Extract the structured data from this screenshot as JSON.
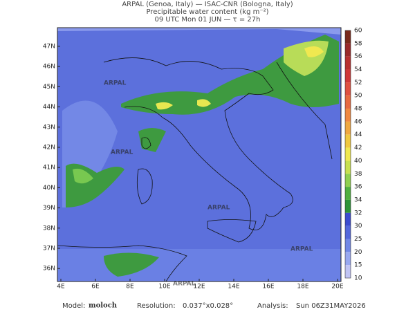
{
  "header": {
    "lines": [
      "ARPAL (Genoa, Italy)  —  ISAC-CNR (Bologna, Italy)",
      "Precipitable water content (kg m⁻²)",
      "09 UTC Mon 01 JUN  —  τ = 27h"
    ]
  },
  "map": {
    "lon_labels": [
      "4E",
      "6E",
      "8E",
      "10E",
      "12E",
      "14E",
      "16E",
      "18E",
      "20E"
    ],
    "lat_labels": [
      "47N",
      "46N",
      "45N",
      "44N",
      "43N",
      "42N",
      "41N",
      "40N",
      "39N",
      "38N",
      "37N",
      "36N"
    ],
    "watermark": "ARPAL"
  },
  "colorbar": {
    "labels": [
      "60",
      "58",
      "56",
      "54",
      "52",
      "50",
      "48",
      "46",
      "44",
      "42",
      "40",
      "38",
      "36",
      "34",
      "32",
      "30",
      "25",
      "20",
      "15",
      "10"
    ],
    "colors": [
      "#7a2a1a",
      "#9a2a2a",
      "#b83030",
      "#d03838",
      "#e05040",
      "#e86a40",
      "#f08840",
      "#f0a840",
      "#f0c840",
      "#f0e850",
      "#c8e050",
      "#90d050",
      "#50b040",
      "#2e9438",
      "#3c4cd0",
      "#5468dc",
      "#7288e6",
      "#98a8f0",
      "#c0c4f4"
    ]
  },
  "footer": {
    "model_label": "Model:",
    "model": "moloch",
    "resolution_label": "Resolution:",
    "resolution": "0.037°x0.028°",
    "analysis_label": "Analysis:",
    "analysis": "Sun 06Z31MAY2026"
  }
}
